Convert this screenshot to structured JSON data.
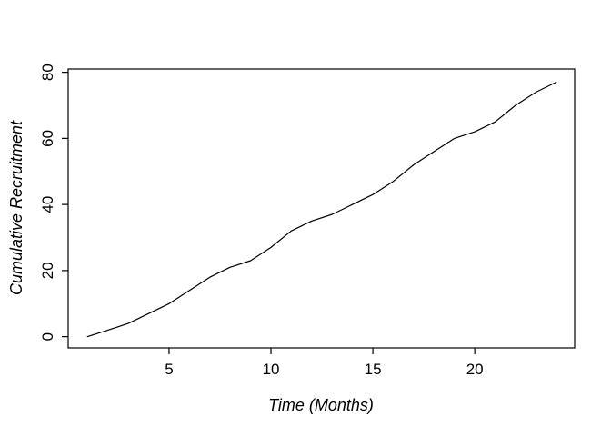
{
  "chart_data": {
    "type": "line",
    "title": "",
    "xlabel": "Time (Months)",
    "ylabel": "Cumulative Recruitment",
    "x": [
      1,
      2,
      3,
      4,
      5,
      6,
      7,
      8,
      9,
      10,
      11,
      12,
      13,
      14,
      15,
      16,
      17,
      18,
      19,
      20,
      21,
      22,
      23,
      24
    ],
    "y": [
      0,
      2,
      4,
      7,
      10,
      14,
      18,
      21,
      23,
      27,
      32,
      35,
      37,
      40,
      43,
      47,
      52,
      56,
      60,
      62,
      65,
      70,
      74,
      77
    ],
    "x_ticks": [
      5,
      10,
      15,
      20
    ],
    "y_ticks": [
      0,
      20,
      40,
      60,
      80
    ],
    "xlim": [
      0.05,
      24.9
    ],
    "ylim": [
      -3.4,
      81.0
    ],
    "grid": false,
    "legend": "none",
    "line_color": "#000000",
    "axis_color": "#000000",
    "background": "#ffffff",
    "style": "r-base-box"
  }
}
